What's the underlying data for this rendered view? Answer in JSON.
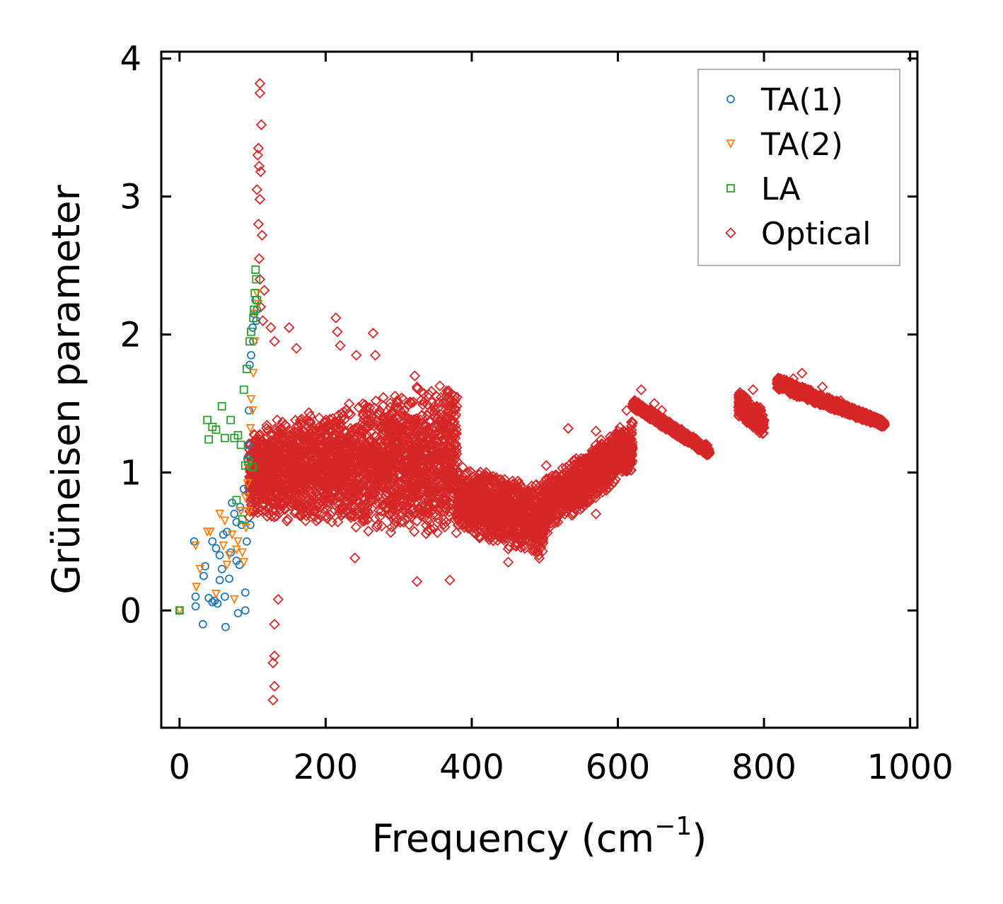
{
  "chart_data": {
    "type": "scatter",
    "title": "",
    "xlabel": "Frequency (cm",
    "xlabel_sup": "−1",
    "xlabel_close": ")",
    "ylabel": "Grüneisen parameter",
    "xlim": [
      -25,
      1010
    ],
    "ylim": [
      -0.85,
      4.05
    ],
    "xticks": [
      0,
      200,
      400,
      600,
      800,
      1000
    ],
    "xtick_labels": [
      "0",
      "200",
      "400",
      "600",
      "800",
      "1000"
    ],
    "yticks": [
      0,
      1,
      2,
      3,
      4
    ],
    "ytick_labels": [
      "0",
      "1",
      "2",
      "3",
      "4"
    ],
    "grid": false,
    "legend_position": "top-right",
    "series": [
      {
        "name": "TA(1)",
        "marker": "circle",
        "color": "#1f77b4",
        "points": [
          [
            0,
            0
          ],
          [
            20,
            0.5
          ],
          [
            22,
            0.03
          ],
          [
            22,
            0.1
          ],
          [
            32,
            -0.1
          ],
          [
            33,
            0.25
          ],
          [
            35,
            0.32
          ],
          [
            40,
            0.09
          ],
          [
            45,
            0.5
          ],
          [
            45,
            0.06
          ],
          [
            48,
            0.07
          ],
          [
            50,
            0.45
          ],
          [
            52,
            0.05
          ],
          [
            55,
            0.4
          ],
          [
            55,
            0.22
          ],
          [
            58,
            0.3
          ],
          [
            60,
            0.55
          ],
          [
            62,
            0.1
          ],
          [
            63,
            -0.12
          ],
          [
            65,
            0.57
          ],
          [
            68,
            0.23
          ],
          [
            70,
            0.42
          ],
          [
            72,
            0.78
          ],
          [
            75,
            0.7
          ],
          [
            78,
            0.64
          ],
          [
            78,
            0.36
          ],
          [
            80,
            -0.02
          ],
          [
            82,
            0.33
          ],
          [
            83,
            0.75
          ],
          [
            85,
            0.62
          ],
          [
            88,
            0.88
          ],
          [
            90,
            0.0
          ],
          [
            90,
            0.13
          ],
          [
            92,
            0.5
          ],
          [
            93,
            1.1
          ],
          [
            94,
            1.2
          ],
          [
            95,
            1.45
          ],
          [
            96,
            1.78
          ],
          [
            97,
            0.62
          ],
          [
            98,
            1.85
          ],
          [
            100,
            2.05
          ],
          [
            101,
            1.95
          ],
          [
            102,
            2.15
          ],
          [
            104,
            2.25
          ],
          [
            105,
            2.1
          ],
          [
            106,
            2.18
          ]
        ]
      },
      {
        "name": "TA(2)",
        "marker": "triangle-down",
        "color": "#ff7f0e",
        "points": [
          [
            0,
            0
          ],
          [
            22,
            0.47
          ],
          [
            23,
            0.17
          ],
          [
            28,
            0.3
          ],
          [
            38,
            0.57
          ],
          [
            42,
            0.57
          ],
          [
            50,
            0.12
          ],
          [
            55,
            0.7
          ],
          [
            60,
            0.47
          ],
          [
            62,
            0.65
          ],
          [
            65,
            0.33
          ],
          [
            68,
            0.4
          ],
          [
            72,
            0.55
          ],
          [
            75,
            0.08
          ],
          [
            78,
            0.44
          ],
          [
            80,
            0.5
          ],
          [
            84,
            0.72
          ],
          [
            86,
            0.42
          ],
          [
            88,
            0.35
          ],
          [
            90,
            0.82
          ],
          [
            91,
            0.6
          ],
          [
            93,
            0.92
          ],
          [
            94,
            1.05
          ],
          [
            95,
            0.72
          ],
          [
            97,
            1.32
          ],
          [
            98,
            1.53
          ],
          [
            100,
            1.45
          ],
          [
            101,
            1.72
          ],
          [
            103,
            1.95
          ],
          [
            104,
            2.15
          ],
          [
            106,
            2.3
          ],
          [
            108,
            2.22
          ]
        ]
      },
      {
        "name": "LA",
        "marker": "square",
        "color": "#2ca02c",
        "points": [
          [
            0,
            0
          ],
          [
            38,
            1.38
          ],
          [
            40,
            1.24
          ],
          [
            45,
            1.33
          ],
          [
            50,
            1.31
          ],
          [
            58,
            1.48
          ],
          [
            62,
            1.25
          ],
          [
            70,
            1.38
          ],
          [
            75,
            1.25
          ],
          [
            78,
            0.8
          ],
          [
            80,
            1.27
          ],
          [
            84,
            1.2
          ],
          [
            86,
            0.66
          ],
          [
            88,
            1.6
          ],
          [
            90,
            1.05
          ],
          [
            92,
            1.75
          ],
          [
            94,
            1.08
          ],
          [
            96,
            1.95
          ],
          [
            98,
            2.02
          ],
          [
            100,
            1.04
          ],
          [
            101,
            2.12
          ],
          [
            102,
            2.18
          ],
          [
            103,
            2.3
          ],
          [
            104,
            2.47
          ],
          [
            105,
            2.4
          ],
          [
            106,
            2.25
          ]
        ]
      },
      {
        "name": "Optical",
        "marker": "diamond",
        "color": "#d62728",
        "points": [
          [
            110,
            3.82
          ],
          [
            110,
            3.75
          ],
          [
            112,
            3.52
          ],
          [
            108,
            3.35
          ],
          [
            107,
            3.3
          ],
          [
            109,
            3.22
          ],
          [
            111,
            3.18
          ],
          [
            106,
            3.05
          ],
          [
            110,
            2.98
          ],
          [
            108,
            2.8
          ],
          [
            113,
            2.72
          ],
          [
            109,
            2.55
          ],
          [
            110,
            2.4
          ],
          [
            111,
            2.2
          ],
          [
            114,
            2.1
          ],
          [
            116,
            2.32
          ],
          [
            125,
            2.05
          ],
          [
            130,
            1.95
          ],
          [
            150,
            2.05
          ],
          [
            160,
            1.9
          ],
          [
            214,
            2.12
          ],
          [
            216,
            2.02
          ],
          [
            220,
            1.92
          ],
          [
            242,
            1.85
          ],
          [
            265,
            2.01
          ],
          [
            268,
            1.85
          ],
          [
            322,
            1.7
          ],
          [
            325,
            1.62
          ],
          [
            365,
            1.55
          ],
          [
            378,
            1.28
          ],
          [
            378,
            1.2
          ],
          [
            420,
            1.0
          ],
          [
            445,
            0.95
          ],
          [
            502,
            1.05
          ],
          [
            532,
            1.32
          ],
          [
            570,
            1.3
          ],
          [
            595,
            1.2
          ],
          [
            600,
            1.3
          ],
          [
            612,
            1.45
          ],
          [
            632,
            1.6
          ],
          [
            650,
            1.5
          ],
          [
            660,
            1.45
          ],
          [
            700,
            1.25
          ],
          [
            725,
            1.15
          ],
          [
            770,
            1.45
          ],
          [
            785,
            1.6
          ],
          [
            800,
            1.38
          ],
          [
            820,
            1.65
          ],
          [
            840,
            1.68
          ],
          [
            852,
            1.72
          ],
          [
            880,
            1.62
          ],
          [
            905,
            1.52
          ],
          [
            930,
            1.45
          ],
          [
            965,
            1.35
          ],
          [
            130,
            -0.1
          ],
          [
            130,
            -0.33
          ],
          [
            128,
            -0.38
          ],
          [
            130,
            -0.55
          ],
          [
            128,
            -0.65
          ],
          [
            135,
            0.08
          ],
          [
            240,
            0.38
          ],
          [
            325,
            0.21
          ],
          [
            370,
            0.22
          ],
          [
            450,
            0.35
          ],
          [
            570,
            0.7
          ]
        ],
        "regions": [
          {
            "x": [
              95,
              380
            ],
            "y_center": [
              1.0,
              1.1
            ],
            "y_spread": [
              0.35,
              0.6
            ]
          },
          {
            "x": [
              380,
              500
            ],
            "y_center": [
              0.8,
              0.65
            ],
            "y_spread": [
              0.25,
              0.3
            ]
          },
          {
            "x": [
              500,
              620
            ],
            "y_center": [
              0.75,
              1.2
            ],
            "y_spread": [
              0.22,
              0.2
            ]
          },
          {
            "x": [
              620,
              725
            ],
            "y_center": [
              1.5,
              1.15
            ],
            "y_spread": [
              0.04,
              0.04
            ]
          },
          {
            "x": [
              765,
              800
            ],
            "y_center": [
              1.5,
              1.35
            ],
            "y_spread": [
              0.1,
              0.1
            ]
          },
          {
            "x": [
              818,
              965
            ],
            "y_center": [
              1.65,
              1.35
            ],
            "y_spread": [
              0.05,
              0.03
            ]
          }
        ]
      }
    ]
  }
}
